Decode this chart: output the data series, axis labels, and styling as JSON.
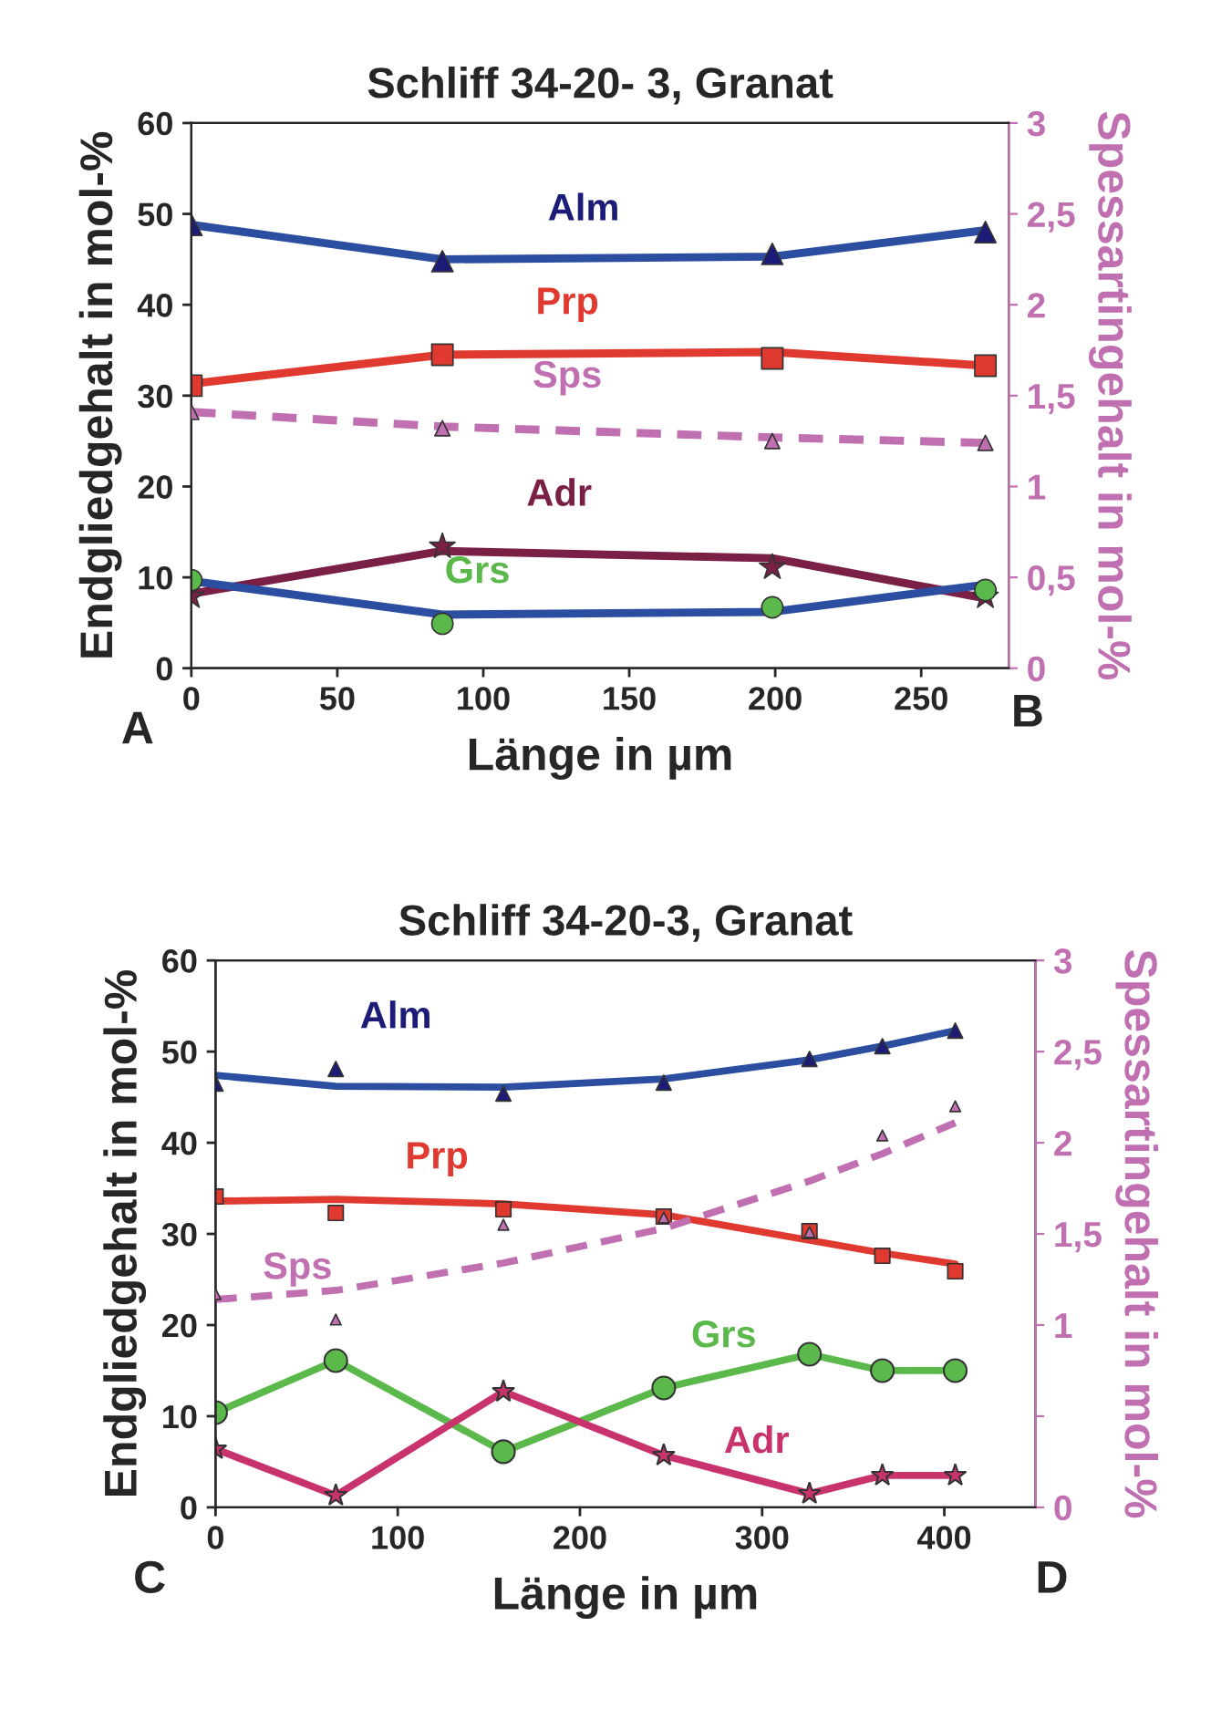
{
  "chart_data": [
    {
      "type": "line",
      "title": "Schliff 34-20- 3, Granat",
      "xlabel": "Länge in µm",
      "ylabel": "Endgliedgehalt in mol-%",
      "y2label": "Spessartingehalt in mol-%",
      "x": [
        0,
        86,
        199,
        272
      ],
      "xlim": [
        0,
        280
      ],
      "xticks": [
        0,
        50,
        100,
        150,
        200,
        250
      ],
      "ylim": [
        0,
        60
      ],
      "yticks": [
        0,
        10,
        20,
        30,
        40,
        50,
        60
      ],
      "y2lim": [
        0,
        3
      ],
      "y2ticks": [
        0,
        {
          "value": 0.5,
          "label": "0,5"
        },
        1,
        {
          "value": 1.5,
          "label": "1,5"
        },
        2,
        {
          "value": 2.5,
          "label": "2,5"
        },
        3
      ],
      "annotations": [
        "A",
        "B"
      ],
      "series": [
        {
          "type": "line",
          "color": "#2b4ea0",
          "values": [
            48.8,
            45.0,
            45.3,
            48.2
          ],
          "marker": "none"
        },
        {
          "type": "scatter",
          "name": "Alm",
          "color": "#1c1c78",
          "values": [
            48.8,
            44.8,
            45.6,
            48.0
          ],
          "marker": "triangle"
        },
        {
          "type": "line",
          "color": "#e03a30",
          "values": [
            31.3,
            34.5,
            34.8,
            33.3
          ],
          "marker": "none"
        },
        {
          "type": "scatter",
          "name": "Prp",
          "color": "#e03a30",
          "values": [
            31.1,
            34.5,
            34.1,
            33.3
          ],
          "marker": "square"
        },
        {
          "type": "line",
          "color": "#c070b0",
          "axis": "y2",
          "line_style": "dashed",
          "values": [
            1.41,
            1.33,
            1.27,
            1.24
          ],
          "marker": "none"
        },
        {
          "type": "scatter",
          "name": "Sps",
          "color": "#c070b0",
          "axis": "y2",
          "values": [
            1.41,
            1.32,
            1.25,
            1.24
          ],
          "marker": "triangle"
        },
        {
          "type": "line",
          "color": "#7a1f45",
          "values": [
            8.2,
            12.9,
            12.1,
            7.7
          ],
          "marker": "none"
        },
        {
          "type": "scatter",
          "name": "Adr",
          "color": "#7a1f45",
          "values": [
            7.9,
            13.4,
            11.1,
            7.9
          ],
          "marker": "star"
        },
        {
          "type": "line",
          "color": "#2b4ea0",
          "values": [
            9.6,
            5.9,
            6.2,
            9.2
          ],
          "marker": "none"
        },
        {
          "type": "scatter",
          "name": "Grs",
          "color": "#5ab94a",
          "values": [
            9.7,
            4.9,
            6.7,
            8.6
          ],
          "marker": "circle"
        }
      ]
    },
    {
      "type": "line",
      "title": "Schliff 34-20-3, Granat",
      "xlabel": "Länge in µm",
      "ylabel": "Endgliedgehalt in mol-%",
      "y2label": "Spessartingehalt in mol-%",
      "x": [
        0,
        66,
        158,
        246,
        326,
        366,
        406
      ],
      "xlim": [
        0,
        450
      ],
      "xticks": [
        0,
        100,
        200,
        300,
        400
      ],
      "ylim": [
        0,
        60
      ],
      "yticks": [
        0,
        10,
        20,
        30,
        40,
        50,
        60
      ],
      "y2lim": [
        0,
        3
      ],
      "y2ticks": [
        0,
        {
          "value": 0.5,
          "label": null
        },
        1,
        {
          "value": 1.5,
          "label": "1,5"
        },
        2,
        {
          "value": 2.5,
          "label": "2,5"
        },
        3
      ],
      "annotations": [
        "C",
        "D"
      ],
      "series": [
        {
          "type": "line",
          "color": "#2b4ea0",
          "values": [
            47.4,
            46.2,
            46.1,
            47.0,
            49.1,
            50.6,
            52.3
          ],
          "marker": "none"
        },
        {
          "type": "scatter",
          "name": "Alm",
          "color": "#1c1c78",
          "values": [
            46.5,
            48.1,
            45.4,
            46.6,
            49.2,
            50.6,
            52.3
          ],
          "marker": "triangle"
        },
        {
          "type": "line",
          "color": "#e03a30",
          "values": [
            33.6,
            33.8,
            33.3,
            32.1,
            29.3,
            27.9,
            26.7
          ],
          "marker": "none"
        },
        {
          "type": "scatter",
          "name": "Prp",
          "color": "#e03a30",
          "values": [
            34.1,
            32.3,
            32.7,
            31.9,
            30.3,
            27.6,
            25.9
          ],
          "marker": "square"
        },
        {
          "type": "line",
          "color": "#c070b0",
          "axis": "y2",
          "line_style": "dashed",
          "values": [
            1.14,
            1.19,
            1.34,
            1.53,
            1.79,
            1.94,
            2.11
          ],
          "marker": "none"
        },
        {
          "type": "scatter",
          "name": "Sps",
          "color": "#c070b0",
          "axis": "y2",
          "values": [
            1.17,
            1.03,
            1.55,
            1.59,
            1.51,
            2.04,
            2.2
          ],
          "marker": "triangle"
        },
        {
          "type": "line",
          "name": "Grs",
          "color": "#5ab94a",
          "values": [
            10.4,
            16.1,
            6.1,
            13.1,
            16.8,
            15.0,
            15.0
          ],
          "marker": "circle"
        },
        {
          "type": "line",
          "name": "Adr",
          "color": "#c8336e",
          "values": [
            6.4,
            1.3,
            12.7,
            5.7,
            1.5,
            3.5,
            3.5
          ],
          "marker": "star"
        }
      ]
    }
  ]
}
